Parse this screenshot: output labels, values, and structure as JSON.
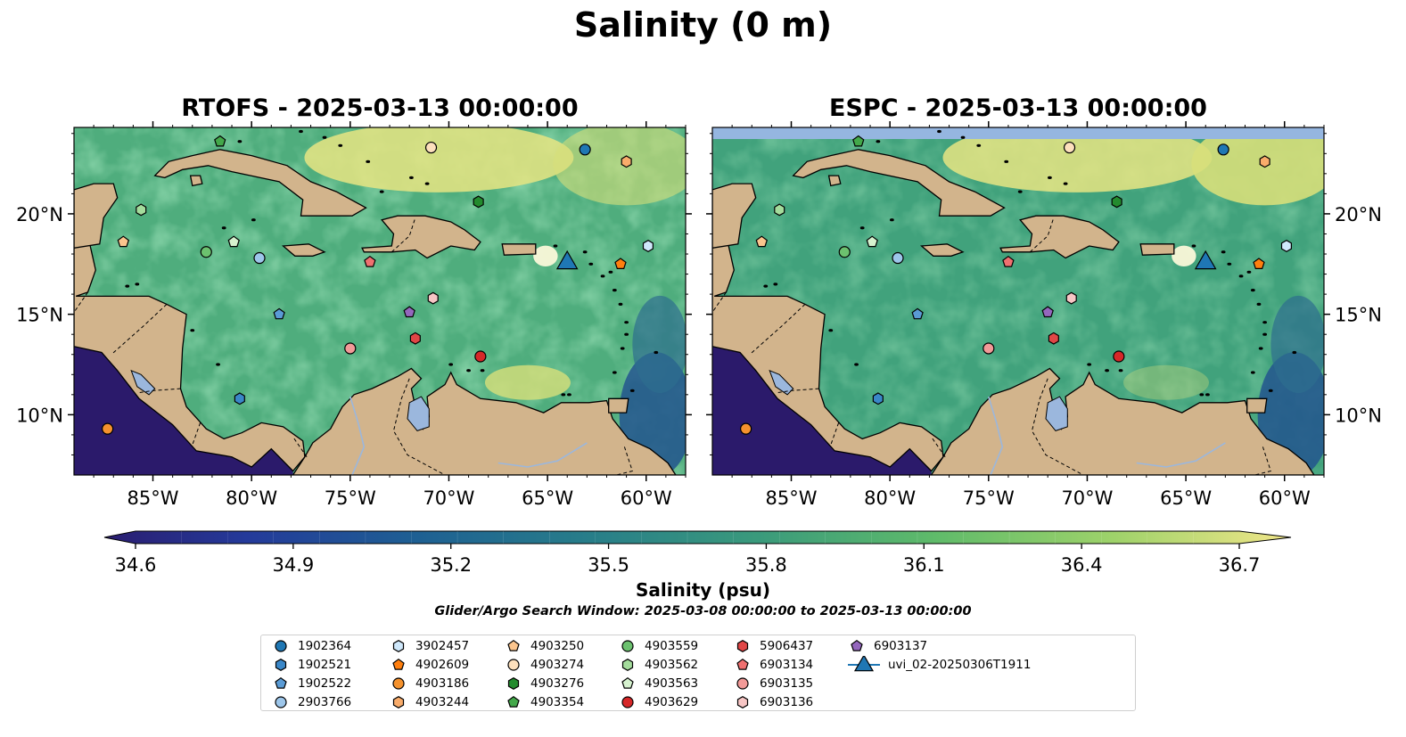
{
  "figure": {
    "title": "Salinity (0 m)",
    "colorbar_label": "Salinity (psu)",
    "search_window": "Glider/Argo Search Window: 2025-03-08 00:00:00 to 2025-03-13 00:00:00"
  },
  "panels": [
    {
      "title": "RTOFS - 2025-03-13 00:00:00"
    },
    {
      "title": "ESPC - 2025-03-13 00:00:00"
    }
  ],
  "axes": {
    "lon_ticks": [
      {
        "value": -85,
        "label": "85°W"
      },
      {
        "value": -80,
        "label": "80°W"
      },
      {
        "value": -75,
        "label": "75°W"
      },
      {
        "value": -70,
        "label": "70°W"
      },
      {
        "value": -65,
        "label": "65°W"
      },
      {
        "value": -60,
        "label": "60°W"
      }
    ],
    "lat_ticks": [
      {
        "value": 20,
        "label": "20°N"
      },
      {
        "value": 15,
        "label": "15°N"
      },
      {
        "value": 10,
        "label": "10°N"
      }
    ],
    "lon_range": [
      -89,
      -58
    ],
    "lat_range": [
      7,
      24.3
    ]
  },
  "colorbar": {
    "range": [
      34.6,
      36.7
    ],
    "ticks": [
      "34.6",
      "34.9",
      "35.2",
      "35.5",
      "35.8",
      "36.1",
      "36.4",
      "36.7"
    ]
  },
  "colors": {
    "land": "#d2b48c",
    "water_base": "#4fad7d",
    "pacific": "#2b1a6b",
    "lakes": "#9bb7dd"
  },
  "observations": [
    {
      "id": "1902364",
      "marker": "circle",
      "color": "#1f77b4",
      "lon": -63.1,
      "lat": 23.2
    },
    {
      "id": "1902521",
      "marker": "hexagon",
      "color": "#3a87c8",
      "lon": -80.6,
      "lat": 10.8
    },
    {
      "id": "1902522",
      "marker": "pentagon",
      "color": "#5a9bd5",
      "lon": -78.6,
      "lat": 15.0
    },
    {
      "id": "2903766",
      "marker": "circle",
      "color": "#9dc6ea",
      "lon": -79.6,
      "lat": 17.8
    },
    {
      "id": "3902457",
      "marker": "hexagon",
      "color": "#cfe8fb",
      "lon": -59.9,
      "lat": 18.4
    },
    {
      "id": "4902609",
      "marker": "pentagon",
      "color": "#ff7f0e",
      "lon": -61.3,
      "lat": 17.5
    },
    {
      "id": "4903186",
      "marker": "circle",
      "color": "#f5922e",
      "lon": -87.3,
      "lat": 9.3
    },
    {
      "id": "4903244",
      "marker": "hexagon",
      "color": "#f9ac6b",
      "lon": -61.0,
      "lat": 22.6
    },
    {
      "id": "4903250",
      "marker": "pentagon",
      "color": "#fbc58e",
      "lon": -86.5,
      "lat": 18.6
    },
    {
      "id": "4903274",
      "marker": "circle",
      "color": "#fde0bd",
      "lon": -70.9,
      "lat": 23.3
    },
    {
      "id": "4903276",
      "marker": "hexagon",
      "color": "#238b2e",
      "lon": -68.5,
      "lat": 20.6
    },
    {
      "id": "4903354",
      "marker": "pentagon",
      "color": "#43a84a",
      "lon": -81.6,
      "lat": 23.6
    },
    {
      "id": "4903559",
      "marker": "circle",
      "color": "#6cc16f",
      "lon": -82.3,
      "lat": 18.1
    },
    {
      "id": "4903562",
      "marker": "hexagon",
      "color": "#a4dc9c",
      "lon": -85.6,
      "lat": 20.2
    },
    {
      "id": "4903563",
      "marker": "pentagon",
      "color": "#d6f2cf",
      "lon": -80.9,
      "lat": 18.6
    },
    {
      "id": "4903629",
      "marker": "circle",
      "color": "#d62728",
      "lon": -68.4,
      "lat": 12.9
    },
    {
      "id": "5906437",
      "marker": "hexagon",
      "color": "#e04646",
      "lon": -71.7,
      "lat": 13.8
    },
    {
      "id": "6903134",
      "marker": "pentagon",
      "color": "#ef7070",
      "lon": -74.0,
      "lat": 17.6
    },
    {
      "id": "6903135",
      "marker": "circle",
      "color": "#f29a98",
      "lon": -75.0,
      "lat": 13.3
    },
    {
      "id": "6903136",
      "marker": "hexagon",
      "color": "#f7c6c5",
      "lon": -70.8,
      "lat": 15.8
    },
    {
      "id": "6903137",
      "marker": "pentagon",
      "color": "#9467bd",
      "lon": -72.0,
      "lat": 15.1
    },
    {
      "id": "uvi_02-20250306T1911",
      "marker": "triangle",
      "color": "#1f77b4",
      "lon": -64.0,
      "lat": 17.7
    }
  ]
}
